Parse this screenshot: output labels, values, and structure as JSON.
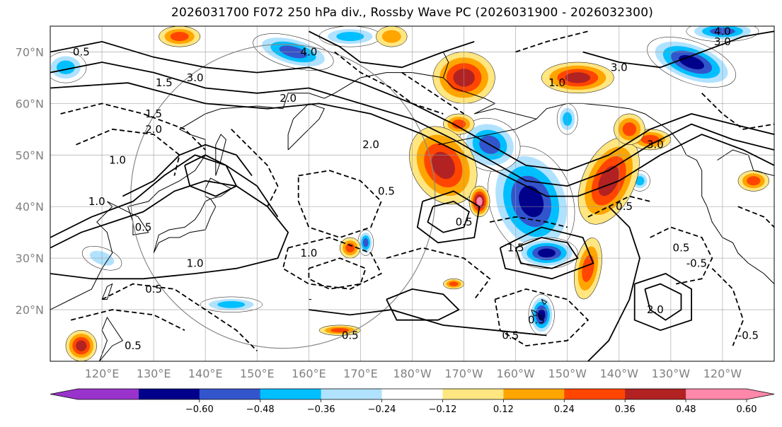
{
  "title": "2026031700 F072 250 hPa div., Rossby Wave PC (2026031900 - 2026032300)",
  "map": {
    "lon_range_deg_east": [
      110,
      250
    ],
    "lat_range": [
      10,
      75
    ],
    "lat_ticks": [
      {
        "lat": 70,
        "label": "70°N"
      },
      {
        "lat": 60,
        "label": "60°N"
      },
      {
        "lat": 50,
        "label": "50°N"
      },
      {
        "lat": 40,
        "label": "40°N"
      },
      {
        "lat": 30,
        "label": "30°N"
      },
      {
        "lat": 20,
        "label": "20°N"
      }
    ],
    "lon_ticks": [
      {
        "lon": 120,
        "label": "120°E"
      },
      {
        "lon": 130,
        "label": "130°E"
      },
      {
        "lon": 140,
        "label": "140°E"
      },
      {
        "lon": 150,
        "label": "150°E"
      },
      {
        "lon": 160,
        "label": "160°E"
      },
      {
        "lon": 170,
        "label": "170°E"
      },
      {
        "lon": 180,
        "label": "180°W"
      },
      {
        "lon": 190,
        "label": "170°W"
      },
      {
        "lon": 200,
        "label": "160°W"
      },
      {
        "lon": 210,
        "label": "150°W"
      },
      {
        "lon": 220,
        "label": "140°W"
      },
      {
        "lon": 230,
        "label": "130°W"
      },
      {
        "lon": 240,
        "label": "120°W"
      }
    ],
    "contour_labels": [
      {
        "text": "0.5",
        "lon": 116,
        "lat": 70
      },
      {
        "text": "1.5",
        "lon": 132,
        "lat": 64
      },
      {
        "text": "3.0",
        "lon": 138,
        "lat": 65
      },
      {
        "text": "1.5",
        "lon": 130,
        "lat": 58
      },
      {
        "text": "2.0",
        "lon": 130,
        "lat": 55
      },
      {
        "text": "1.0",
        "lon": 123,
        "lat": 49
      },
      {
        "text": "2.0",
        "lon": 156,
        "lat": 61
      },
      {
        "text": "4.0",
        "lon": 160,
        "lat": 70
      },
      {
        "text": "2.0",
        "lon": 172,
        "lat": 52
      },
      {
        "text": "0.5",
        "lon": 175,
        "lat": 43
      },
      {
        "text": "0.5",
        "lon": 190,
        "lat": 37
      },
      {
        "text": "1.0",
        "lon": 119,
        "lat": 41
      },
      {
        "text": "0.5",
        "lon": 128,
        "lat": 36
      },
      {
        "text": "1.0",
        "lon": 138,
        "lat": 29
      },
      {
        "text": "0.5",
        "lon": 130,
        "lat": 24
      },
      {
        "text": "1.0",
        "lon": 160,
        "lat": 31
      },
      {
        "text": "1.5",
        "lon": 200,
        "lat": 32
      },
      {
        "text": "0.5",
        "lon": 168,
        "lat": 15
      },
      {
        "text": "0.5",
        "lon": 126,
        "lat": 13
      },
      {
        "text": "1.0",
        "lon": 208,
        "lat": 64
      },
      {
        "text": "3.0",
        "lon": 220,
        "lat": 67
      },
      {
        "text": "3.0",
        "lon": 227,
        "lat": 52
      },
      {
        "text": "4.0",
        "lon": 240,
        "lat": 74
      },
      {
        "text": "3.0",
        "lon": 240,
        "lat": 72
      },
      {
        "text": "0.5",
        "lon": 221,
        "lat": 40
      },
      {
        "text": "0.5",
        "lon": 232,
        "lat": 32
      },
      {
        "text": "-0.5",
        "lon": 235,
        "lat": 29
      },
      {
        "text": "2.0",
        "lon": 227,
        "lat": 20
      },
      {
        "text": "-0.5",
        "lon": 245,
        "lat": 15
      },
      {
        "text": "0.5",
        "lon": 204,
        "lat": 18
      },
      {
        "text": "0.5",
        "lon": 199,
        "lat": 15
      }
    ],
    "divergence_blobs": [
      {
        "lon": 203,
        "lat": 41,
        "rx": 8,
        "ry": 11,
        "rot": -20,
        "levels": [
          -0.12,
          -0.24,
          -0.36,
          -0.48,
          -0.6
        ]
      },
      {
        "lon": 195,
        "lat": 52,
        "rx": 6,
        "ry": 5,
        "rot": 20,
        "levels": [
          -0.12,
          -0.24,
          -0.36,
          -0.48
        ]
      },
      {
        "lon": 206,
        "lat": 31,
        "rx": 6,
        "ry": 3,
        "rot": 0,
        "levels": [
          -0.12,
          -0.24,
          -0.36,
          -0.48,
          -0.6
        ]
      },
      {
        "lon": 205,
        "lat": 19,
        "rx": 2.5,
        "ry": 4,
        "rot": 0,
        "levels": [
          -0.12,
          -0.24,
          -0.36,
          -0.48,
          -0.6
        ]
      },
      {
        "lon": 171,
        "lat": 33,
        "rx": 1.5,
        "ry": 2.5,
        "rot": 0,
        "levels": [
          -0.12,
          -0.24,
          -0.36,
          -0.48
        ]
      },
      {
        "lon": 157,
        "lat": 70,
        "rx": 8,
        "ry": 3,
        "rot": 15,
        "levels": [
          -0.12,
          -0.24,
          -0.36,
          -0.48
        ]
      },
      {
        "lon": 168,
        "lat": 73,
        "rx": 6,
        "ry": 2,
        "rot": 0,
        "levels": [
          -0.12,
          -0.24,
          -0.36
        ]
      },
      {
        "lon": 234,
        "lat": 68,
        "rx": 9,
        "ry": 4,
        "rot": 20,
        "levels": [
          -0.12,
          -0.24,
          -0.36,
          -0.48,
          -0.6
        ]
      },
      {
        "lon": 240,
        "lat": 74,
        "rx": 7,
        "ry": 2,
        "rot": 0,
        "levels": [
          -0.12,
          -0.24,
          -0.36,
          -0.48
        ]
      },
      {
        "lon": 145,
        "lat": 21,
        "rx": 6,
        "ry": 1.5,
        "rot": 0,
        "levels": [
          -0.12,
          -0.24,
          -0.36
        ]
      },
      {
        "lon": 120,
        "lat": 30,
        "rx": 4,
        "ry": 2,
        "rot": 20,
        "levels": [
          -0.12,
          -0.24
        ]
      },
      {
        "lon": 113,
        "lat": 67,
        "rx": 4,
        "ry": 3,
        "rot": 0,
        "levels": [
          -0.12,
          -0.24,
          -0.36
        ]
      },
      {
        "lon": 210,
        "lat": 57,
        "rx": 2,
        "ry": 3,
        "rot": 0,
        "levels": [
          -0.12,
          -0.24,
          -0.36
        ]
      },
      {
        "lon": 224,
        "lat": 45,
        "rx": 2,
        "ry": 2,
        "rot": 0,
        "levels": [
          -0.12,
          -0.24,
          -0.36
        ]
      },
      {
        "lon": 189,
        "lat": 56,
        "rx": 3,
        "ry": 2,
        "rot": 0,
        "levels": [
          0.12,
          0.24,
          0.36
        ]
      },
      {
        "lon": 186,
        "lat": 48,
        "rx": 6,
        "ry": 8,
        "rot": -30,
        "levels": [
          0.12,
          0.24,
          0.36,
          0.48
        ]
      },
      {
        "lon": 193,
        "lat": 41,
        "rx": 2,
        "ry": 3,
        "rot": 0,
        "levels": [
          0.12,
          0.24,
          0.36,
          0.48,
          0.6
        ]
      },
      {
        "lon": 218,
        "lat": 45,
        "rx": 5,
        "ry": 9,
        "rot": 25,
        "levels": [
          0.12,
          0.24,
          0.36,
          0.48
        ]
      },
      {
        "lon": 190,
        "lat": 65,
        "rx": 6,
        "ry": 5,
        "rot": 0,
        "levels": [
          0.12,
          0.24,
          0.36,
          0.48
        ]
      },
      {
        "lon": 212,
        "lat": 65,
        "rx": 7,
        "ry": 3,
        "rot": 0,
        "levels": [
          0.12,
          0.24,
          0.36,
          0.48
        ]
      },
      {
        "lon": 214,
        "lat": 28,
        "rx": 2.5,
        "ry": 6,
        "rot": 10,
        "levels": [
          0.12,
          0.24,
          0.36
        ]
      },
      {
        "lon": 168,
        "lat": 32,
        "rx": 2,
        "ry": 2,
        "rot": 0,
        "levels": [
          0.12,
          0.24,
          0.36
        ]
      },
      {
        "lon": 226,
        "lat": 53,
        "rx": 4,
        "ry": 2,
        "rot": 0,
        "levels": [
          0.12,
          0.24,
          0.36
        ]
      },
      {
        "lon": 116,
        "lat": 13,
        "rx": 3,
        "ry": 3,
        "rot": 0,
        "levels": [
          0.12,
          0.24,
          0.36,
          0.48
        ]
      },
      {
        "lon": 166,
        "lat": 16,
        "rx": 4,
        "ry": 1,
        "rot": 0,
        "levels": [
          0.12,
          0.24,
          0.36
        ]
      },
      {
        "lon": 135,
        "lat": 73,
        "rx": 4,
        "ry": 2,
        "rot": 0,
        "levels": [
          0.12,
          0.24,
          0.36
        ]
      },
      {
        "lon": 246,
        "lat": 45,
        "rx": 3,
        "ry": 2,
        "rot": 0,
        "levels": [
          0.12,
          0.24,
          0.36
        ]
      },
      {
        "lon": 176,
        "lat": 73,
        "rx": 3,
        "ry": 2,
        "rot": 0,
        "levels": [
          0.12,
          0.24
        ]
      },
      {
        "lon": 188,
        "lat": 25,
        "rx": 2,
        "ry": 1,
        "rot": 0,
        "levels": [
          0.12,
          0.24,
          0.36
        ]
      },
      {
        "lon": 222,
        "lat": 55,
        "rx": 3,
        "ry": 3,
        "rot": 0,
        "levels": [
          0.12,
          0.24,
          0.36
        ]
      }
    ]
  },
  "colorbar": {
    "levels": [
      -0.72,
      -0.6,
      -0.48,
      -0.36,
      -0.24,
      -0.12,
      0.12,
      0.24,
      0.36,
      0.48,
      0.6,
      0.72
    ],
    "colors": [
      "#9933cc",
      "#00008b",
      "#3355cc",
      "#00bfff",
      "#b0e2ff",
      "#ffffff",
      "#ffe680",
      "#ffa500",
      "#ff4500",
      "#b22222",
      "#ff88aa"
    ],
    "tick_labels": [
      "−0.60",
      "−0.48",
      "−0.36",
      "−0.24",
      "−0.12",
      "0.12",
      "0.24",
      "0.36",
      "0.48",
      "0.60"
    ]
  }
}
